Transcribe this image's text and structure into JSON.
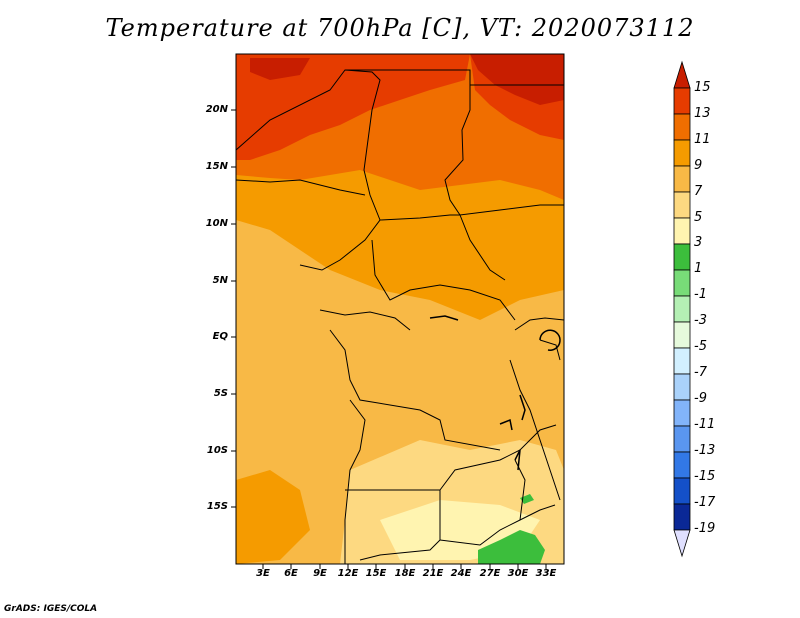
{
  "title": "Temperature at 700hPa [C], VT: 2020073112",
  "footer": "GrADS: IGES/COLA",
  "map": {
    "lat_labels": [
      "20N",
      "15N",
      "10N",
      "5N",
      "EQ",
      "5S",
      "10S",
      "15S"
    ],
    "lon_labels": [
      "3E",
      "6E",
      "9E",
      "12E",
      "15E",
      "18E",
      "21E",
      "24E",
      "27E",
      "30E",
      "33E"
    ]
  },
  "colorbar": {
    "labels": [
      "15",
      "13",
      "11",
      "9",
      "7",
      "5",
      "3",
      "1",
      "-1",
      "-3",
      "-5",
      "-7",
      "-9",
      "-11",
      "-13",
      "-15",
      "-17",
      "-19"
    ],
    "colors": [
      "#c81e00",
      "#e63c00",
      "#f06e00",
      "#f59b00",
      "#f8b946",
      "#fdd981",
      "#fff4b0",
      "#3cbe3c",
      "#78dc78",
      "#b4f0b4",
      "#e6fadc",
      "#d2f0ff",
      "#aad2fa",
      "#82b4fa",
      "#5a96f0",
      "#3278e6",
      "#1450c8",
      "#0a2896",
      "#e0e0ff"
    ]
  }
}
